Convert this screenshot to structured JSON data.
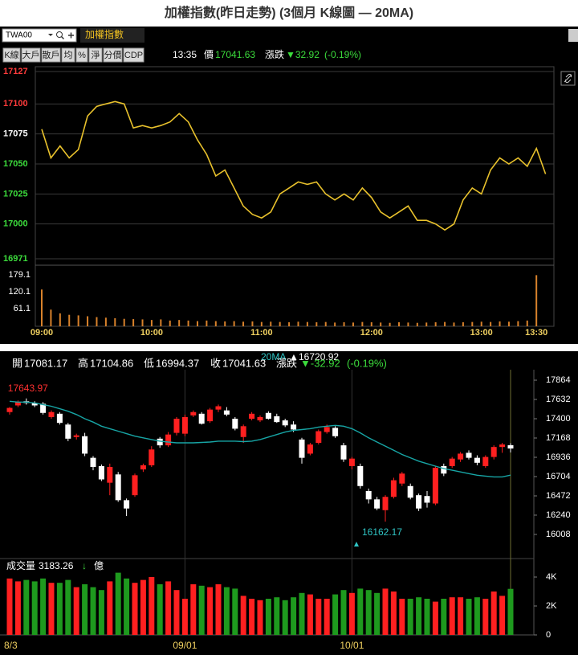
{
  "title": "加權指數(昨日走勢) (3個月 K線圖 — 20MA)",
  "toolbar": {
    "symbol": "TWA00",
    "name": "加權指數",
    "buttons": [
      "K線",
      "大戶",
      "散戶",
      "均",
      "%",
      "淨",
      "分價",
      "CDP"
    ],
    "time": "13:35",
    "price_label": "價",
    "change_label": "漲跌",
    "change": "▼32.92",
    "change_pct": "(-0.19%)"
  },
  "chart_data": [
    {
      "type": "line",
      "color": "#e8c12c",
      "x": [
        "09:00",
        "09:05",
        "09:10",
        "09:15",
        "09:20",
        "09:25",
        "09:30",
        "09:35",
        "09:40",
        "09:45",
        "09:50",
        "09:55",
        "10:00",
        "10:05",
        "10:10",
        "10:15",
        "10:20",
        "10:25",
        "10:30",
        "10:35",
        "10:40",
        "10:45",
        "10:50",
        "10:55",
        "11:00",
        "11:05",
        "11:10",
        "11:15",
        "11:20",
        "11:25",
        "11:30",
        "11:35",
        "11:40",
        "11:45",
        "11:50",
        "11:55",
        "12:00",
        "12:05",
        "12:10",
        "12:15",
        "12:20",
        "12:25",
        "12:30",
        "12:35",
        "12:40",
        "12:45",
        "12:50",
        "12:55",
        "13:00",
        "13:05",
        "13:10",
        "13:15",
        "13:20",
        "13:25",
        "13:30",
        "13:35"
      ],
      "values": [
        17079,
        17055,
        17065,
        17055,
        17062,
        17090,
        17098,
        17100,
        17102,
        17100,
        17080,
        17082,
        17080,
        17082,
        17085,
        17092,
        17085,
        17070,
        17058,
        17040,
        17045,
        17030,
        17015,
        17008,
        17005,
        17010,
        17025,
        17030,
        17035,
        17033,
        17035,
        17025,
        17020,
        17025,
        17020,
        17030,
        17022,
        17010,
        17005,
        17010,
        17015,
        17003,
        17003,
        17000,
        16995,
        17000,
        17020,
        17030,
        17025,
        17045,
        17055,
        17050,
        17055,
        17048,
        17063,
        17041.63
      ],
      "xlim": [
        "09:00",
        "13:40"
      ],
      "xticks": [
        "09:00",
        "10:00",
        "11:00",
        "12:00",
        "13:00",
        "13:30"
      ],
      "ylim": [
        16971,
        17127
      ],
      "yticks": [
        17127,
        17100,
        17075,
        17050,
        17025,
        17000,
        16971
      ],
      "ytick_colors": [
        "#ff3b3b",
        "#ff3b3b",
        "#ffffff",
        "#3cdc3c",
        "#3cdc3c",
        "#3cdc3c",
        "#3cdc3c"
      ],
      "grid": true
    },
    {
      "type": "bar",
      "color": "#d9822b",
      "x": [
        "09:00",
        "09:05",
        "09:10",
        "09:15",
        "09:20",
        "09:25",
        "09:30",
        "09:35",
        "09:40",
        "09:45",
        "09:50",
        "09:55",
        "10:00",
        "10:05",
        "10:10",
        "10:15",
        "10:20",
        "10:25",
        "10:30",
        "10:35",
        "10:40",
        "10:45",
        "10:50",
        "10:55",
        "11:00",
        "11:05",
        "11:10",
        "11:15",
        "11:20",
        "11:25",
        "11:30",
        "11:35",
        "11:40",
        "11:45",
        "11:50",
        "11:55",
        "12:00",
        "12:05",
        "12:10",
        "12:15",
        "12:20",
        "12:25",
        "12:30",
        "12:35",
        "12:40",
        "12:45",
        "12:50",
        "12:55",
        "13:00",
        "13:05",
        "13:10",
        "13:15",
        "13:20",
        "13:25",
        "13:30"
      ],
      "values": [
        128,
        58,
        45,
        40,
        38,
        35,
        32,
        30,
        28,
        26,
        25,
        24,
        22,
        24,
        20,
        22,
        20,
        18,
        20,
        18,
        17,
        18,
        16,
        17,
        15,
        16,
        15,
        14,
        16,
        15,
        14,
        15,
        13,
        14,
        13,
        15,
        14,
        13,
        12,
        14,
        13,
        12,
        13,
        14,
        15,
        13,
        14,
        15,
        16,
        15,
        17,
        16,
        18,
        20,
        178
      ],
      "xlim": [
        "09:00",
        "13:40"
      ],
      "ylim": [
        0,
        207
      ],
      "yticks": [
        179.1,
        120.1,
        61.1
      ],
      "grid": false
    },
    {
      "type": "candlestick",
      "up_color": "#ff2020",
      "down_color": "#ffffff",
      "categories": [
        "8/3",
        null,
        null,
        null,
        null,
        null,
        null,
        null,
        null,
        null,
        null,
        null,
        null,
        null,
        null,
        null,
        null,
        null,
        null,
        null,
        null,
        "09/01",
        null,
        null,
        null,
        null,
        null,
        null,
        null,
        null,
        null,
        null,
        null,
        null,
        null,
        null,
        null,
        null,
        null,
        null,
        null,
        "10/01",
        null,
        null,
        null,
        null,
        null,
        null,
        null,
        null,
        null,
        null,
        null,
        null,
        null,
        null,
        null,
        null,
        null,
        null,
        null
      ],
      "open": [
        17480,
        17560,
        17610,
        17590,
        17580,
        17420,
        17460,
        17330,
        17180,
        17190,
        16930,
        16830,
        16630,
        16730,
        16420,
        16480,
        16790,
        16840,
        17160,
        17080,
        17230,
        17220,
        17440,
        17460,
        17370,
        17510,
        17500,
        17400,
        17180,
        17400,
        17380,
        17470,
        17430,
        17380,
        17330,
        17150,
        16980,
        17110,
        17240,
        17290,
        17080,
        16830,
        16830,
        16530,
        16430,
        16300,
        16460,
        16620,
        16590,
        16480,
        16470,
        16380,
        16830,
        16830,
        16910,
        16990,
        16930,
        16830,
        16940,
        17060,
        17081.17
      ],
      "high": [
        17540,
        17620,
        17643.97,
        17610,
        17600,
        17500,
        17480,
        17350,
        17220,
        17230,
        16950,
        16850,
        16860,
        16760,
        16440,
        16740,
        16860,
        17070,
        17180,
        17240,
        17420,
        17450,
        17500,
        17480,
        17530,
        17570,
        17540,
        17420,
        17330,
        17480,
        17440,
        17490,
        17460,
        17400,
        17370,
        17170,
        17110,
        17270,
        17330,
        17310,
        17110,
        16940,
        16860,
        16560,
        16460,
        16480,
        16690,
        16760,
        16620,
        16500,
        16530,
        16830,
        16860,
        16940,
        17000,
        17020,
        16960,
        16960,
        17080,
        17110,
        17104.86
      ],
      "low": [
        17450,
        17540,
        17570,
        17540,
        17450,
        17400,
        17330,
        17130,
        17150,
        16950,
        16780,
        16650,
        16480,
        16400,
        16230,
        16460,
        16760,
        16820,
        17050,
        17060,
        17200,
        17190,
        17420,
        17330,
        17350,
        17480,
        17430,
        17260,
        17110,
        17380,
        17360,
        17390,
        17350,
        17300,
        17240,
        16860,
        16960,
        17090,
        17220,
        17170,
        16880,
        16790,
        16560,
        16380,
        16300,
        16162.17,
        16440,
        16590,
        16430,
        16290,
        16330,
        16360,
        16710,
        16810,
        16880,
        16910,
        16840,
        16810,
        16910,
        16990,
        16994.37
      ],
      "close": [
        17530,
        17600,
        17590,
        17560,
        17470,
        17480,
        17350,
        17160,
        17200,
        16980,
        16820,
        16670,
        16820,
        16420,
        16320,
        16720,
        16840,
        17030,
        17080,
        17210,
        17400,
        17420,
        17480,
        17340,
        17510,
        17550,
        17450,
        17280,
        17310,
        17460,
        17420,
        17400,
        17360,
        17320,
        17270,
        16930,
        17090,
        17250,
        17300,
        17190,
        16910,
        16920,
        16590,
        16430,
        16320,
        16460,
        16660,
        16740,
        16450,
        16320,
        16390,
        16810,
        16740,
        16920,
        16980,
        16930,
        16870,
        16940,
        17060,
        17090,
        17041.63
      ],
      "ma": {
        "name": "20MA",
        "color": "#17a5a5",
        "values": [
          17610,
          17600,
          17600,
          17590,
          17570,
          17550,
          17520,
          17490,
          17450,
          17400,
          17360,
          17310,
          17280,
          17250,
          17220,
          17190,
          17170,
          17150,
          17130,
          17120,
          17110,
          17110,
          17110,
          17115,
          17120,
          17130,
          17130,
          17130,
          17125,
          17130,
          17150,
          17180,
          17210,
          17240,
          17260,
          17270,
          17280,
          17300,
          17310,
          17320,
          17310,
          17280,
          17230,
          17170,
          17120,
          17070,
          17020,
          16970,
          16930,
          16890,
          16860,
          16830,
          16800,
          16780,
          16760,
          16740,
          16720,
          16710,
          16700,
          16700,
          16720.92
        ]
      },
      "ma_arrow": "▲",
      "ohlc_labels": [
        "開",
        "高",
        "低",
        "收"
      ],
      "change_label": "漲跌",
      "change": "▼-32.92",
      "change_pct": "(-0.19%)",
      "ylim": [
        15766,
        17990
      ],
      "yticks": [
        17864,
        17632,
        17400,
        17168,
        16936,
        16704,
        16472,
        16240,
        16008
      ],
      "grid": false
    },
    {
      "type": "bar",
      "up_color": "#ff2020",
      "down_color": "#1e9a1e",
      "label": "成交量",
      "trend": "↓",
      "unit": "億",
      "values": [
        3900,
        3700,
        3800,
        3700,
        3900,
        3600,
        3600,
        3800,
        3300,
        3500,
        3300,
        3100,
        3700,
        4300,
        3900,
        3600,
        3800,
        4000,
        3500,
        3700,
        3100,
        2500,
        3500,
        3400,
        3300,
        3500,
        3300,
        3200,
        2700,
        2500,
        2400,
        2500,
        2600,
        2400,
        2600,
        2900,
        2800,
        2500,
        2500,
        2800,
        3100,
        2900,
        3200,
        3100,
        2900,
        3200,
        3000,
        2500,
        2500,
        2600,
        2500,
        2300,
        2500,
        2600,
        2600,
        2500,
        2600,
        2500,
        3000,
        2700,
        3183.26
      ],
      "ylim": [
        0,
        5000
      ],
      "yticks": [
        {
          "value": 4000,
          "label": "4K"
        },
        {
          "value": 2000,
          "label": "2K"
        },
        0
      ],
      "grid": false
    }
  ]
}
